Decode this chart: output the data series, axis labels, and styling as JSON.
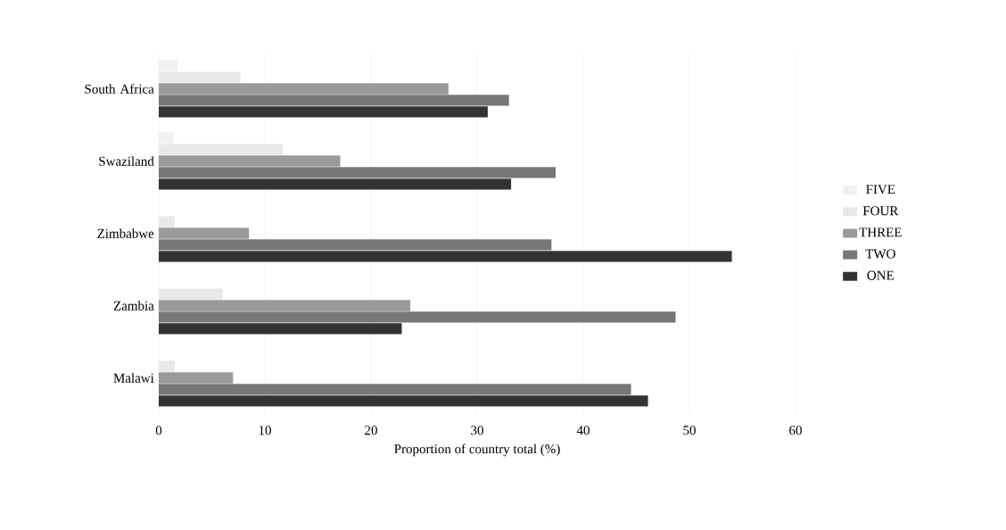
{
  "chart_data": {
    "type": "bar",
    "orientation": "horizontal",
    "xlabel": "Proportion of country total (%)",
    "categories": [
      "South Africa",
      "Swaziland",
      "Zimbabwe",
      "Zambia",
      "Malawi"
    ],
    "series": [
      {
        "name": "ONE",
        "color": "#333333",
        "values": [
          31,
          33.2,
          54,
          22.9,
          46.1
        ]
      },
      {
        "name": "TWO",
        "color": "#777777",
        "values": [
          33,
          37.4,
          37,
          48.7,
          44.5
        ]
      },
      {
        "name": "THREE",
        "color": "#9a9a9a",
        "values": [
          27.3,
          17.1,
          8.5,
          23.7,
          7
        ]
      },
      {
        "name": "FOUR",
        "color": "#e8e8e8",
        "values": [
          7.7,
          11.7,
          1.5,
          6,
          1.5
        ]
      },
      {
        "name": "FIVE",
        "color": "#f0f0f0",
        "values": [
          1.8,
          1.4,
          null,
          null,
          null
        ]
      }
    ],
    "xlim": [
      0,
      60
    ],
    "xticks": [
      0,
      10,
      20,
      30,
      40,
      50,
      60
    ],
    "grid": "x",
    "legend": "right"
  }
}
